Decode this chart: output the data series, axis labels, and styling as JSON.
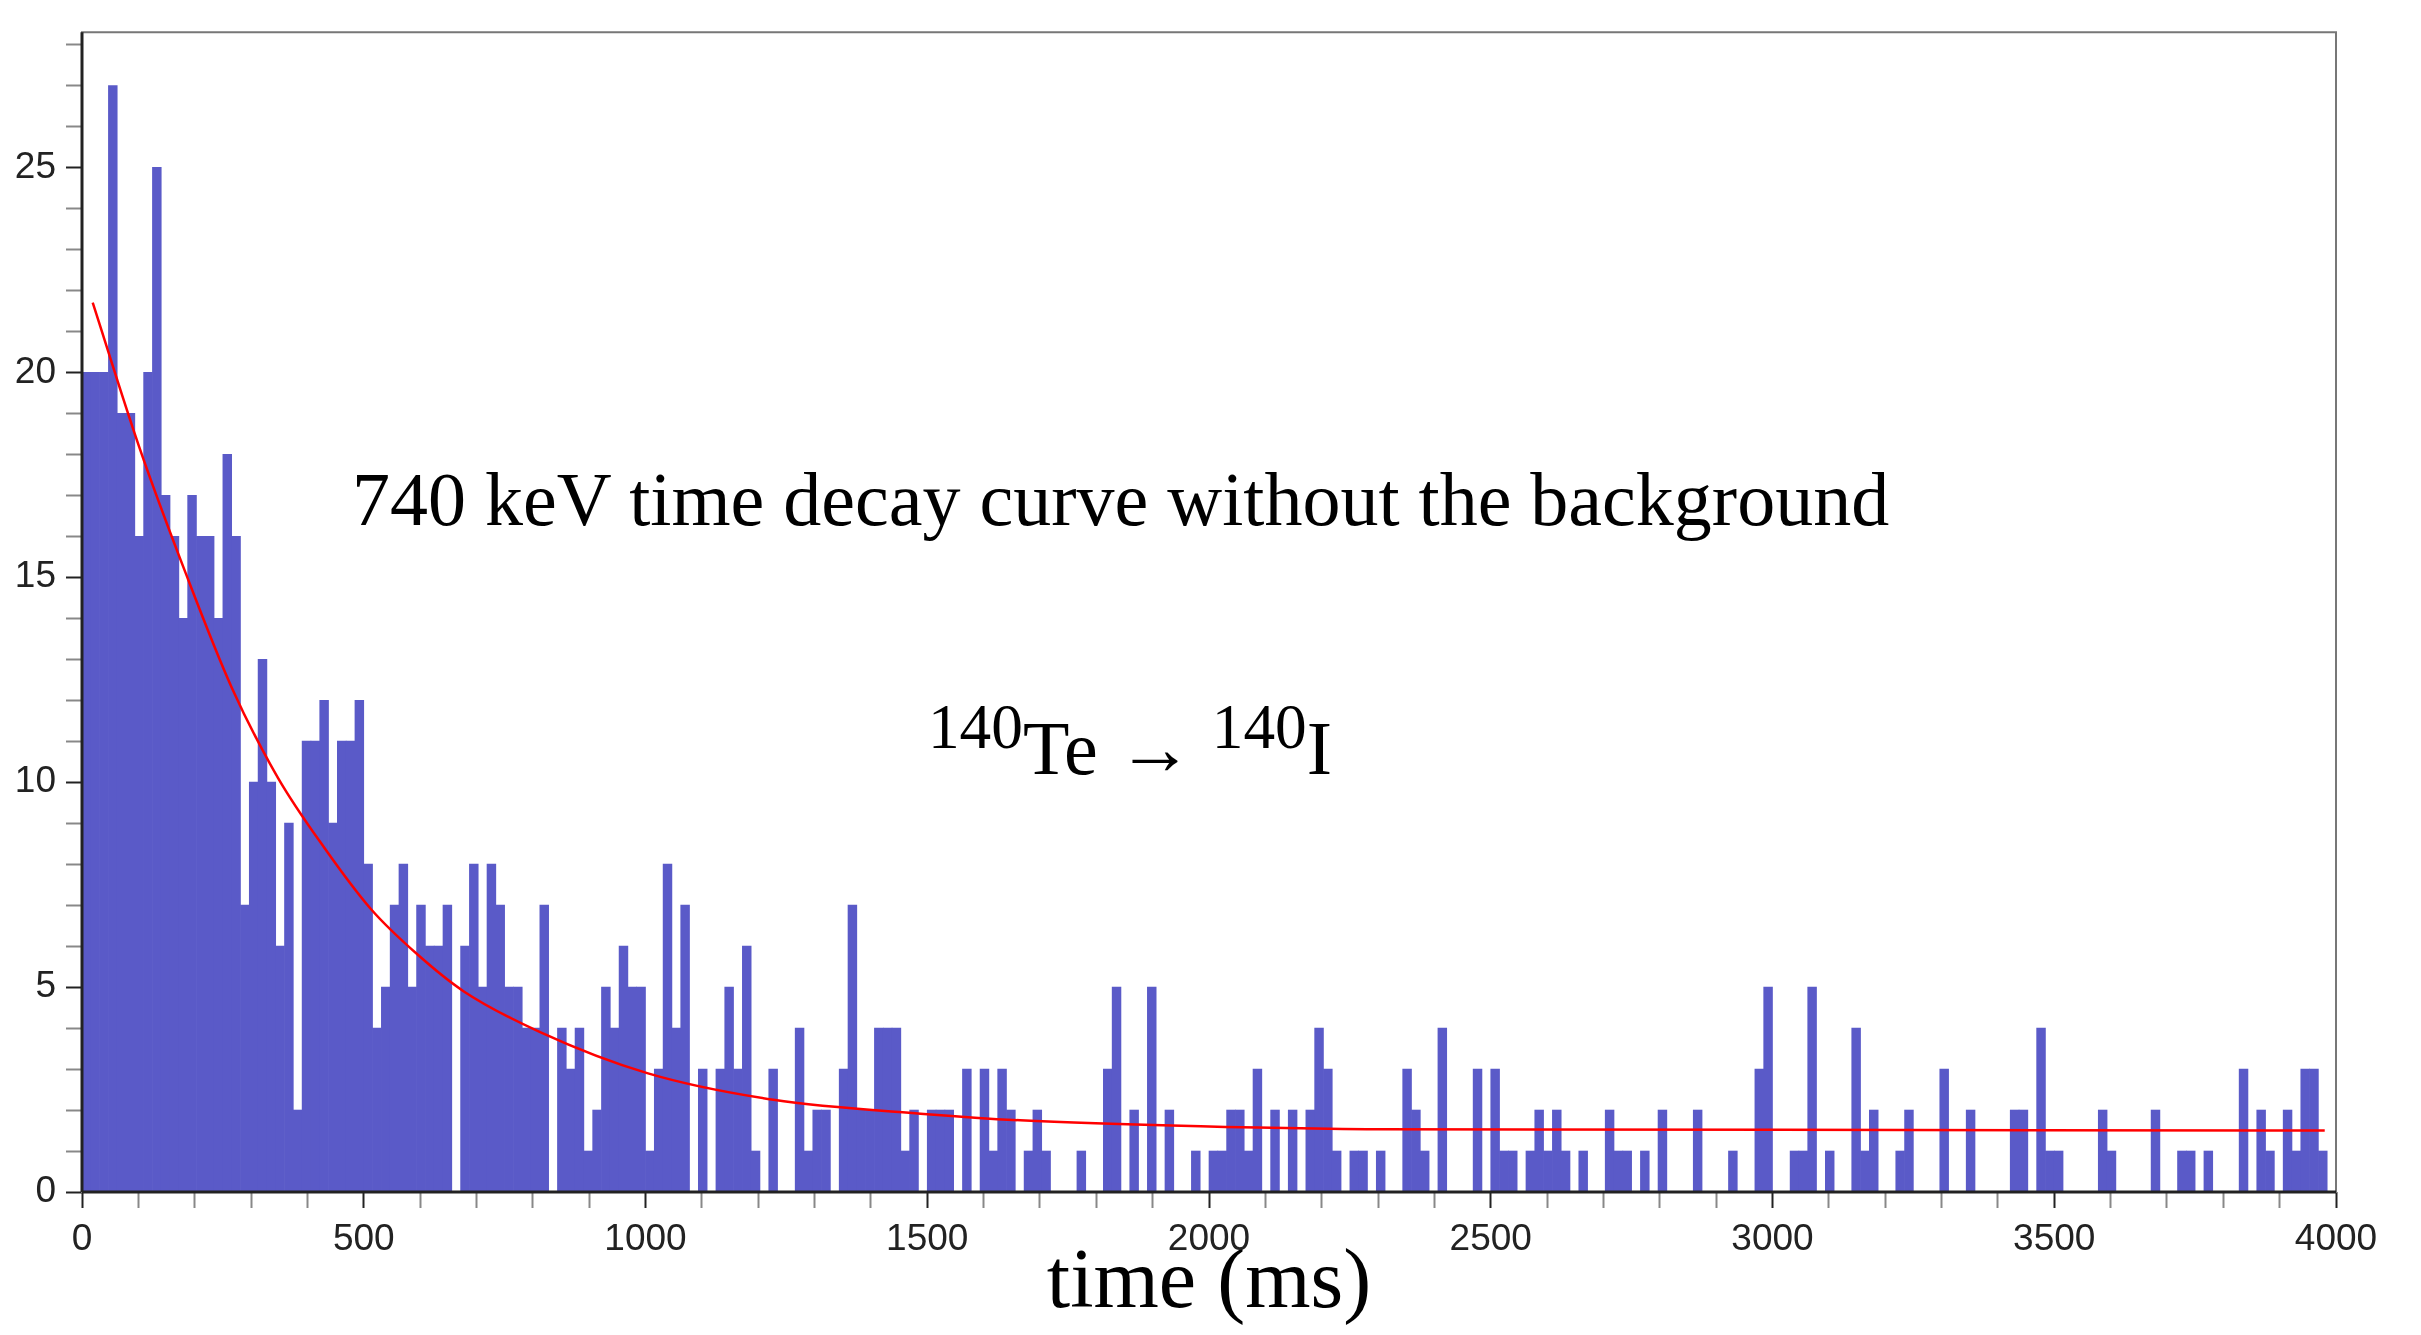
{
  "chart_data": {
    "type": "histogram",
    "xlabel": "time (ms)",
    "annotations": [
      "740 keV time decay curve without the background",
      "$^{140}$Te → $^{140}$I"
    ],
    "color": "#5a5ac8",
    "bins": [
      0,
      15.625,
      31.25,
      46.875,
      62.5,
      78.125,
      93.75,
      109.375,
      125,
      140.625,
      156.25,
      171.875,
      187.5,
      203.125,
      218.75,
      234.375,
      250,
      265.625,
      281.25,
      296.875,
      312.5,
      328.125,
      343.75,
      359.375,
      375,
      390.625,
      406.25,
      421.875,
      437.5,
      453.125,
      468.75,
      484.375,
      500,
      515.625,
      531.25,
      546.875,
      562.5,
      578.125,
      593.75,
      609.375,
      625,
      640.625,
      656.25,
      671.875,
      687.5,
      703.125,
      718.75,
      734.375,
      750,
      765.625,
      781.25,
      796.875,
      812.5,
      828.125,
      843.75,
      859.375,
      875,
      890.625,
      906.25,
      921.875,
      937.5,
      953.125,
      968.75,
      984.375,
      1000,
      1015.625,
      1031.25,
      1046.875,
      1062.5,
      1078.125,
      1093.75,
      1109.375,
      1125,
      1140.625,
      1156.25,
      1171.875,
      1187.5,
      1203.125,
      1218.75,
      1234.375,
      1250,
      1265.625,
      1281.25,
      1296.875,
      1312.5,
      1328.125,
      1343.75,
      1359.375,
      1375,
      1390.625,
      1406.25,
      1421.875,
      1437.5,
      1453.125,
      1468.75,
      1484.375,
      1500,
      1515.625,
      1531.25,
      1546.875,
      1562.5,
      1578.125,
      1593.75,
      1609.375,
      1625,
      1640.625,
      1656.25,
      1671.875,
      1687.5,
      1703.125,
      1718.75,
      1734.375,
      1750,
      1765.625,
      1781.25,
      1796.875,
      1812.5,
      1828.125,
      1843.75,
      1859.375,
      1875,
      1890.625,
      1906.25,
      1921.875,
      1937.5,
      1953.125,
      1968.75,
      1984.375,
      2000,
      2015.625,
      2031.25,
      2046.875,
      2062.5,
      2078.125,
      2093.75,
      2109.375,
      2125,
      2140.625,
      2156.25,
      2171.875,
      2187.5,
      2203.125,
      2218.75,
      2234.375,
      2250,
      2265.625,
      2281.25,
      2296.875,
      2312.5,
      2328.125,
      2343.75,
      2359.375,
      2375,
      2390.625,
      2406.25,
      2421.875,
      2437.5,
      2453.125,
      2468.75,
      2484.375,
      2500,
      2515.625,
      2531.25,
      2546.875,
      2562.5,
      2578.125,
      2593.75,
      2609.375,
      2625,
      2640.625,
      2656.25,
      2671.875,
      2687.5,
      2703.125,
      2718.75,
      2734.375,
      2750,
      2765.625,
      2781.25,
      2796.875,
      2812.5,
      2828.125,
      2843.75,
      2859.375,
      2875,
      2890.625,
      2906.25,
      2921.875,
      2937.5,
      2953.125,
      2968.75,
      2984.375,
      3000,
      3015.625,
      3031.25,
      3046.875,
      3062.5,
      3078.125,
      3093.75,
      3109.375,
      3125,
      3140.625,
      3156.25,
      3171.875,
      3187.5,
      3203.125,
      3218.75,
      3234.375,
      3250,
      3265.625,
      3281.25,
      3296.875,
      3312.5,
      3328.125,
      3343.75,
      3359.375,
      3375,
      3390.625,
      3406.25,
      3421.875,
      3437.5,
      3453.125,
      3468.75,
      3484.375,
      3500,
      3515.625,
      3531.25,
      3546.875,
      3562.5,
      3578.125,
      3593.75,
      3609.375,
      3625,
      3640.625,
      3656.25,
      3671.875,
      3687.5,
      3703.125,
      3718.75,
      3734.375,
      3750,
      3765.625,
      3781.25,
      3796.875,
      3812.5,
      3828.125,
      3843.75,
      3859.375,
      3875,
      3890.625,
      3906.25,
      3921.875,
      3937.5,
      3953.125,
      3968.75,
      3984.375,
      4000
    ],
    "values": [
      20,
      20,
      20,
      27,
      19,
      19,
      16,
      20,
      25,
      17,
      16,
      14,
      17,
      16,
      16,
      14,
      18,
      16,
      7,
      10,
      13,
      10,
      6,
      9,
      2,
      11,
      11,
      12,
      9,
      11,
      11,
      12,
      8,
      4,
      5,
      7,
      8,
      5,
      7,
      6,
      6,
      7,
      0,
      6,
      8,
      5,
      8,
      7,
      5,
      5,
      4,
      4,
      7,
      0,
      4,
      3,
      4,
      1,
      2,
      5,
      4,
      6,
      5,
      5,
      1,
      3,
      8,
      4,
      7,
      0,
      3,
      0,
      3,
      5,
      3,
      6,
      1,
      0,
      3,
      0,
      0,
      4,
      1,
      2,
      2,
      0,
      3,
      7,
      2,
      2,
      4,
      4,
      4,
      1,
      2,
      0,
      2,
      2,
      2,
      0,
      3,
      0,
      3,
      1,
      3,
      2,
      0,
      1,
      2,
      1,
      0,
      0,
      0,
      1,
      0,
      0,
      3,
      5,
      0,
      2,
      0,
      5,
      0,
      2,
      0,
      0,
      1,
      0,
      1,
      1,
      2,
      2,
      1,
      3,
      0,
      2,
      0,
      2,
      0,
      2,
      4,
      3,
      1,
      0,
      1,
      1,
      0,
      1,
      0,
      0,
      3,
      2,
      1,
      0,
      4,
      0,
      0,
      0,
      3,
      0,
      3,
      1,
      1,
      0,
      1,
      2,
      1,
      2,
      1,
      0,
      1,
      0,
      0,
      2,
      1,
      1,
      0,
      1,
      0,
      2,
      0,
      0,
      0,
      2,
      0,
      0,
      0,
      1,
      0,
      0,
      3,
      5,
      0,
      0,
      1,
      1,
      5,
      0,
      1,
      0,
      0,
      4,
      1,
      2,
      0,
      0,
      1,
      2,
      0,
      0,
      0,
      3,
      0,
      0,
      2,
      0,
      0,
      0,
      0,
      2,
      2,
      0,
      4,
      1,
      1,
      0,
      0,
      0,
      0,
      2,
      1,
      0,
      0,
      0,
      0,
      2,
      0,
      0,
      1,
      1,
      0,
      1,
      0,
      0,
      0,
      3,
      0,
      2,
      1,
      0,
      2,
      1,
      3,
      3,
      1,
      0
    ],
    "series": [
      {
        "type": "line",
        "color": "#ff0000",
        "x": [
          19,
          101,
          184,
          266,
          348,
          430,
          513,
          595,
          677,
          813,
          1003,
          1227,
          1500,
          1665,
          2000,
          2300,
          3980
        ],
        "values": [
          21.7,
          18.2,
          15.1,
          12.3,
          10.1,
          8.4,
          6.9,
          5.8,
          4.9,
          3.9,
          2.9,
          2.25,
          1.9,
          1.75,
          1.6,
          1.53,
          1.5
        ]
      }
    ],
    "xlim": [
      0,
      4000
    ],
    "ylim": [
      0,
      28.3
    ],
    "xticks": [
      0,
      {
        "value": 100,
        "label": null
      },
      {
        "value": 200,
        "label": null
      },
      {
        "value": 300,
        "label": null
      },
      {
        "value": 400,
        "label": null
      },
      500,
      {
        "value": 600,
        "label": null
      },
      {
        "value": 700,
        "label": null
      },
      {
        "value": 800,
        "label": null
      },
      {
        "value": 900,
        "label": null
      },
      1000,
      {
        "value": 1100,
        "label": null
      },
      {
        "value": 1200,
        "label": null
      },
      {
        "value": 1300,
        "label": null
      },
      {
        "value": 1400,
        "label": null
      },
      1500,
      {
        "value": 1600,
        "label": null
      },
      {
        "value": 1700,
        "label": null
      },
      {
        "value": 1800,
        "label": null
      },
      {
        "value": 1900,
        "label": null
      },
      2000,
      {
        "value": 2100,
        "label": null
      },
      {
        "value": 2200,
        "label": null
      },
      {
        "value": 2300,
        "label": null
      },
      {
        "value": 2400,
        "label": null
      },
      2500,
      {
        "value": 2600,
        "label": null
      },
      {
        "value": 2700,
        "label": null
      },
      {
        "value": 2800,
        "label": null
      },
      {
        "value": 2900,
        "label": null
      },
      3000,
      {
        "value": 3100,
        "label": null
      },
      {
        "value": 3200,
        "label": null
      },
      {
        "value": 3300,
        "label": null
      },
      {
        "value": 3400,
        "label": null
      },
      3500,
      {
        "value": 3600,
        "label": null
      },
      {
        "value": 3700,
        "label": null
      },
      {
        "value": 3800,
        "label": null
      },
      {
        "value": 3900,
        "label": null
      },
      4000
    ],
    "yticks": [
      0,
      {
        "value": 1,
        "label": null
      },
      {
        "value": 2,
        "label": null
      },
      {
        "value": 3,
        "label": null
      },
      {
        "value": 4,
        "label": null
      },
      5,
      {
        "value": 6,
        "label": null
      },
      {
        "value": 7,
        "label": null
      },
      {
        "value": 8,
        "label": null
      },
      {
        "value": 9,
        "label": null
      },
      10,
      {
        "value": 11,
        "label": null
      },
      {
        "value": 12,
        "label": null
      },
      {
        "value": 13,
        "label": null
      },
      {
        "value": 14,
        "label": null
      },
      15,
      {
        "value": 16,
        "label": null
      },
      {
        "value": 17,
        "label": null
      },
      {
        "value": 18,
        "label": null
      },
      {
        "value": 19,
        "label": null
      },
      20,
      {
        "value": 21,
        "label": null
      },
      {
        "value": 22,
        "label": null
      },
      {
        "value": 23,
        "label": null
      },
      {
        "value": 24,
        "label": null
      },
      25,
      {
        "value": 26,
        "label": null
      },
      {
        "value": 27,
        "label": null
      },
      {
        "value": 28,
        "label": null
      }
    ]
  }
}
